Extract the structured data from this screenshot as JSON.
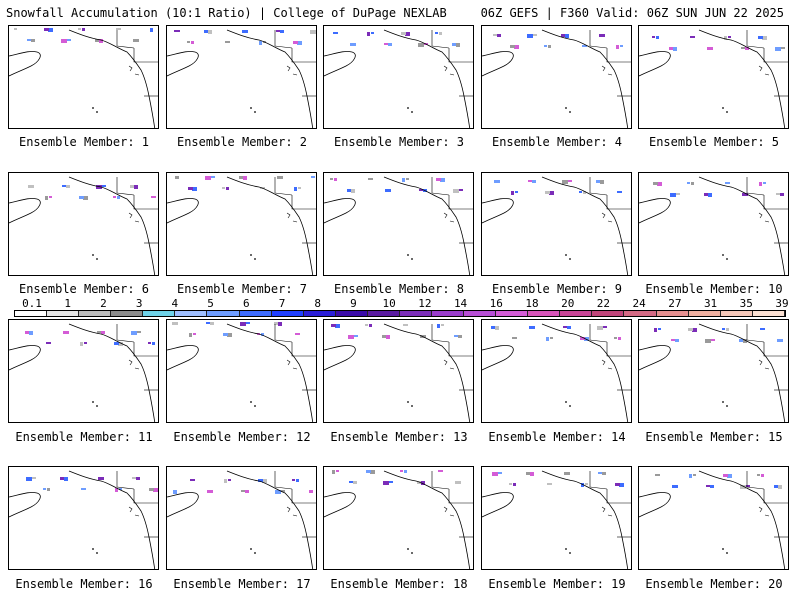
{
  "header": {
    "left": "Snowfall Accumulation (10:1 Ratio) | College of DuPage NEXLAB",
    "right": "06Z GEFS | F360 Valid: 06Z SUN JUN 22 2025"
  },
  "members": [
    {
      "label": "Ensemble Member: 1"
    },
    {
      "label": "Ensemble Member: 2"
    },
    {
      "label": "Ensemble Member: 3"
    },
    {
      "label": "Ensemble Member: 4"
    },
    {
      "label": "Ensemble Member: 5"
    },
    {
      "label": "Ensemble Member: 6"
    },
    {
      "label": "Ensemble Member: 7"
    },
    {
      "label": "Ensemble Member: 8"
    },
    {
      "label": "Ensemble Member: 9"
    },
    {
      "label": "Ensemble Member: 10"
    },
    {
      "label": "Ensemble Member: 11"
    },
    {
      "label": "Ensemble Member: 12"
    },
    {
      "label": "Ensemble Member: 13"
    },
    {
      "label": "Ensemble Member: 14"
    },
    {
      "label": "Ensemble Member: 15"
    },
    {
      "label": "Ensemble Member: 16"
    },
    {
      "label": "Ensemble Member: 17"
    },
    {
      "label": "Ensemble Member: 18"
    },
    {
      "label": "Ensemble Member: 19"
    },
    {
      "label": "Ensemble Member: 20"
    }
  ],
  "colorbar": {
    "labels": [
      "0.1",
      "1",
      "2",
      "3",
      "4",
      "5",
      "6",
      "7",
      "8",
      "9",
      "10",
      "12",
      "14",
      "16",
      "18",
      "20",
      "22",
      "24",
      "27",
      "31",
      "35",
      "39"
    ],
    "colors": [
      "#ffffff",
      "#e6e6e6",
      "#bdbdbd",
      "#8c8c8c",
      "#6fd3e9",
      "#9fbfff",
      "#6e9dff",
      "#3d6cff",
      "#1f3fff",
      "#2b1ed8",
      "#3a0aa8",
      "#5a1aa0",
      "#7b2cb8",
      "#9a3ccc",
      "#b84fd6",
      "#d45cd6",
      "#d653b8",
      "#c84496",
      "#c0457a",
      "#d46a84",
      "#e69090",
      "#f0b0a0",
      "#f5c7b8",
      "#fbe0d2"
    ]
  }
}
